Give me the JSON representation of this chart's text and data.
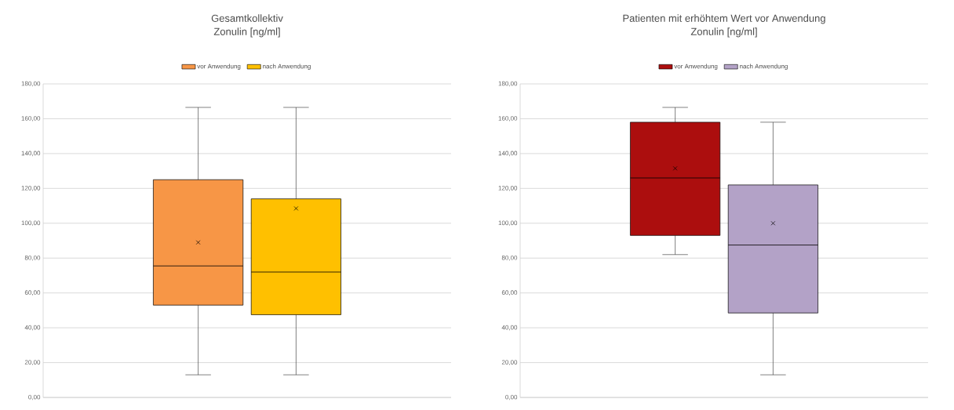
{
  "chart_data": [
    {
      "type": "box",
      "title": "Gesamtkollektiv",
      "subtitle": "Zonulin [ng/ml]",
      "categories": [
        null
      ],
      "series": [
        {
          "name": "vor Anwendung",
          "color": "#f79646",
          "boxes": [
            {
              "low": 13,
              "q1": 53,
              "median": 75.5,
              "q3": 125,
              "high": 166.5,
              "mean": 89
            }
          ]
        },
        {
          "name": "nach Anwendung",
          "color": "#ffc000",
          "boxes": [
            {
              "low": 13,
              "q1": 47.5,
              "median": 72,
              "q3": 114,
              "high": 166.5,
              "mean": 108.5
            }
          ]
        }
      ],
      "ylim": [
        0,
        180
      ],
      "yticks": [
        {
          "value": 0,
          "label": "0,00"
        },
        {
          "value": 20,
          "label": "20,00"
        },
        {
          "value": 40,
          "label": "40,00"
        },
        {
          "value": 60,
          "label": "60,00"
        },
        {
          "value": 80,
          "label": "80,00"
        },
        {
          "value": 100,
          "label": "100,00"
        },
        {
          "value": 120,
          "label": "120,00"
        },
        {
          "value": 140,
          "label": "140,00"
        },
        {
          "value": 160,
          "label": "160,00"
        },
        {
          "value": 180,
          "label": "180,00"
        }
      ],
      "grid": "y",
      "legend": "top",
      "tick_labels": "y"
    },
    {
      "type": "box",
      "title": "Patienten mit erhöhtem Wert vor Anwendung",
      "subtitle": "Zonulin [ng/ml]",
      "categories": [
        null
      ],
      "series": [
        {
          "name": "vor Anwendung",
          "color": "#ac0e0e",
          "boxes": [
            {
              "low": 82,
              "q1": 93,
              "median": 126,
              "q3": 158,
              "high": 166.5,
              "mean": 131.5
            }
          ]
        },
        {
          "name": "nach Anwendung",
          "color": "#b3a2c7",
          "boxes": [
            {
              "low": 13,
              "q1": 48.5,
              "median": 87.5,
              "q3": 122,
              "high": 158,
              "mean": 100
            }
          ]
        }
      ],
      "ylim": [
        0,
        180
      ],
      "yticks": [
        {
          "value": 0,
          "label": "0,00"
        },
        {
          "value": 20,
          "label": "20,00"
        },
        {
          "value": 40,
          "label": "40,00"
        },
        {
          "value": 60,
          "label": "60,00"
        },
        {
          "value": 80,
          "label": "80,00"
        },
        {
          "value": 100,
          "label": "100,00"
        },
        {
          "value": 120,
          "label": "120,00"
        },
        {
          "value": 140,
          "label": "140,00"
        },
        {
          "value": 160,
          "label": "160,00"
        },
        {
          "value": 180,
          "label": "180,00"
        }
      ],
      "grid": "y",
      "legend": "top",
      "tick_labels": "y"
    }
  ]
}
